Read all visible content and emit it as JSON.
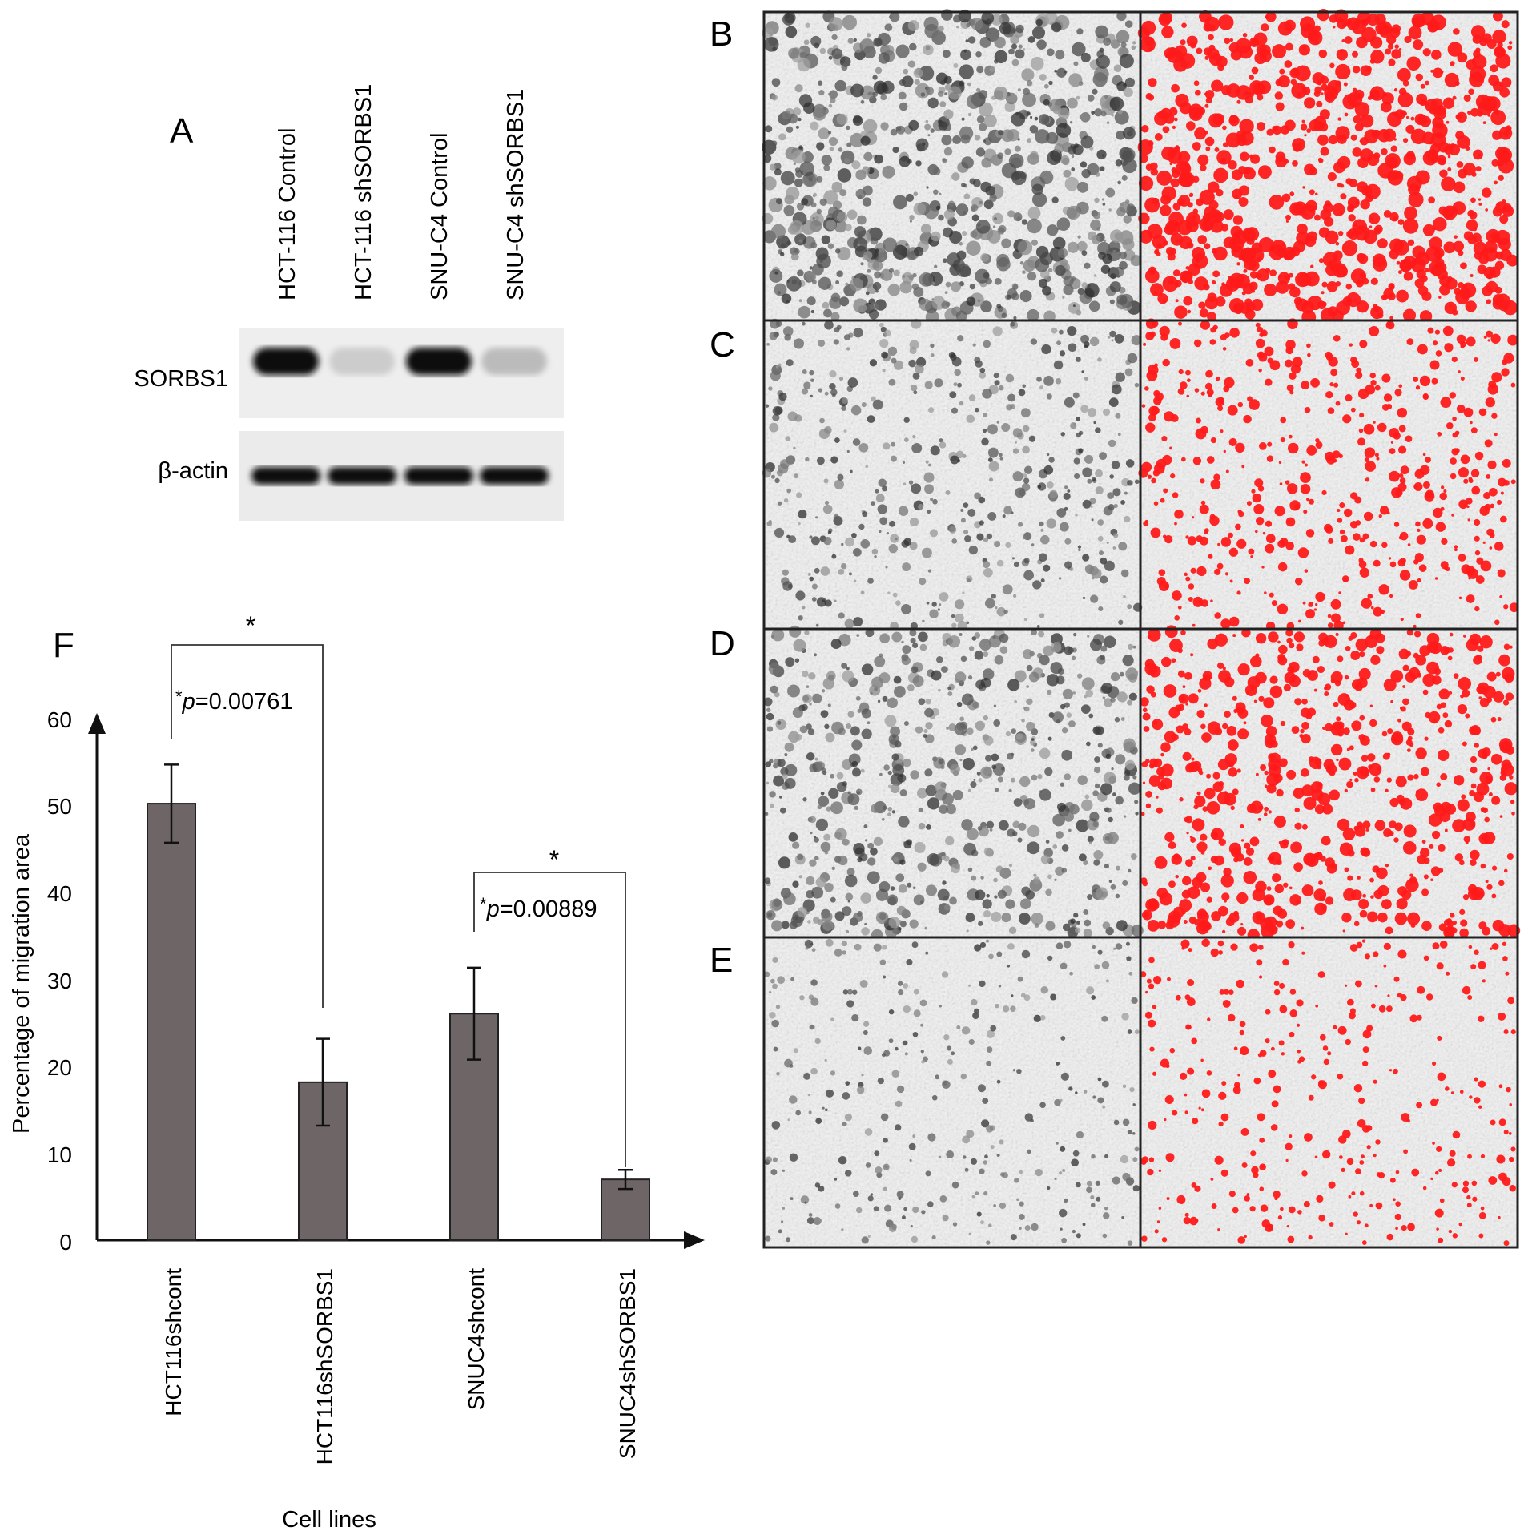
{
  "panel_labels": {
    "a": "A",
    "b": "B",
    "c": "C",
    "d": "D",
    "e": "E",
    "f": "F"
  },
  "western_blot": {
    "lanes": [
      "HCT-116 Control",
      "HCT-116 shSORBS1",
      "SNU-C4 Control",
      "SNU-C4 shSORBS1"
    ],
    "rows": [
      {
        "label": "SORBS1",
        "band_intensity": [
          1.0,
          0.12,
          1.0,
          0.2
        ]
      },
      {
        "label": "β-actin",
        "band_intensity": [
          1.0,
          1.0,
          1.0,
          1.0
        ]
      }
    ]
  },
  "micrographs": [
    {
      "panel": "B",
      "coverage": 0.7
    },
    {
      "panel": "C",
      "coverage": 0.3
    },
    {
      "panel": "D",
      "coverage": 0.5
    },
    {
      "panel": "E",
      "coverage": 0.12
    }
  ],
  "chart_data": {
    "type": "bar",
    "categories": [
      "HCT116shcont",
      "HCT116shSORBS1",
      "SNUC4shcont",
      "SNUC4shSORBS1"
    ],
    "values": [
      50.3,
      18.2,
      26.1,
      7.0
    ],
    "errors": [
      4.5,
      5.0,
      5.3,
      1.1
    ],
    "xlabel": "Cell lines",
    "ylabel": "Percentage of migration area",
    "ylim": [
      0,
      60
    ],
    "yticks": [
      "0",
      "10",
      "20",
      "30",
      "40",
      "50",
      "60"
    ],
    "bar_color": "#6e6567",
    "grid": false,
    "significance": [
      {
        "from": 0,
        "to": 1,
        "star": "*",
        "star2": "*",
        "p_italic": "p",
        "p_rest": "=0.00761"
      },
      {
        "from": 2,
        "to": 3,
        "star": "*",
        "star2": "*",
        "p_italic": "p",
        "p_rest": "=0.00889"
      }
    ]
  },
  "colors": {
    "highlight_red": "#ff1a1a",
    "axis": "#111111"
  }
}
